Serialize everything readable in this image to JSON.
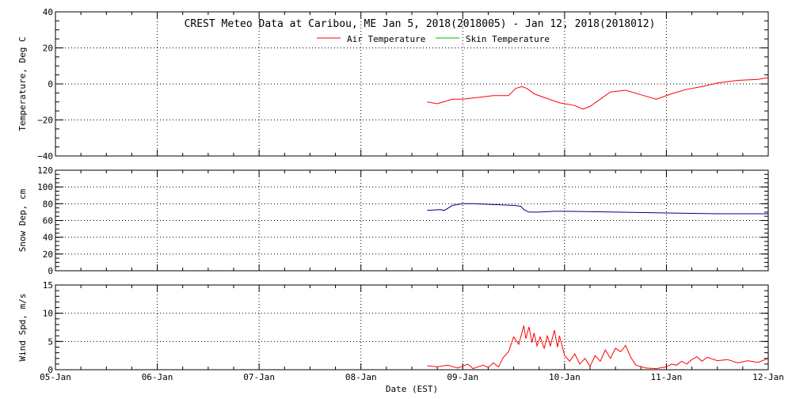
{
  "chart_data": [
    {
      "type": "line",
      "title": "CREST Meteo Data at Caribou, ME   Jan  5, 2018(2018005) - Jan 12, 2018(2018012)",
      "ylabel": "Temperature, Deg C",
      "ylim": [
        -40,
        40
      ],
      "yticks": [
        "40",
        "20",
        "0",
        "−20",
        "−40"
      ],
      "ytick_values": [
        40,
        20,
        0,
        -20,
        -40
      ],
      "grid": true,
      "legend": "top",
      "series": [
        {
          "name": "Air Temperature",
          "color": "#ff0000",
          "x": [
            3.65,
            3.75,
            3.9,
            4.0,
            4.15,
            4.3,
            4.45,
            4.52,
            4.58,
            4.63,
            4.7,
            4.8,
            4.95,
            5.1,
            5.18,
            5.25,
            5.35,
            5.45,
            5.6,
            5.75,
            5.9,
            6.05,
            6.2,
            6.35,
            6.5,
            6.7,
            6.9,
            7.0
          ],
          "y": [
            -10,
            -11,
            -8.5,
            -8.5,
            -7.5,
            -6.5,
            -6.5,
            -2.5,
            -1.5,
            -2.5,
            -5.5,
            -7.5,
            -10.5,
            -12,
            -14,
            -12.5,
            -8.5,
            -4.5,
            -3.5,
            -6,
            -8.5,
            -5.5,
            -3,
            -1.5,
            0.5,
            2,
            2.5,
            3.5
          ]
        },
        {
          "name": "Skin Temperature",
          "color": "#00bb00",
          "x": [],
          "y": []
        }
      ]
    },
    {
      "type": "line",
      "ylabel": "Snow Dep, cm",
      "ylim": [
        0,
        120
      ],
      "yticks": [
        "120",
        "100",
        "80",
        "60",
        "40",
        "20",
        "0"
      ],
      "ytick_values": [
        120,
        100,
        80,
        60,
        40,
        20,
        0
      ],
      "grid": true,
      "series": [
        {
          "color": "#000080",
          "x": [
            3.65,
            3.78,
            3.82,
            3.9,
            4.0,
            4.1,
            4.3,
            4.5,
            4.57,
            4.6,
            4.65,
            4.75,
            4.9,
            5.0,
            5.5,
            6.0,
            6.5,
            7.0
          ],
          "y": [
            72,
            73,
            72,
            78,
            80,
            80,
            79,
            78,
            77,
            73,
            70,
            70,
            71,
            71,
            70,
            69,
            68,
            68
          ]
        }
      ]
    },
    {
      "type": "line",
      "ylabel": "Wind Spd, m/s",
      "xlabel": "Date (EST)",
      "ylim": [
        0,
        15
      ],
      "yticks": [
        "15",
        "10",
        "5",
        "0"
      ],
      "ytick_values": [
        15,
        10,
        5,
        0
      ],
      "grid": true,
      "categories": [
        "05-Jan",
        "06-Jan",
        "07-Jan",
        "08-Jan",
        "09-Jan",
        "10-Jan",
        "11-Jan",
        "12-Jan"
      ],
      "series": [
        {
          "color": "#ff0000",
          "x": [
            3.65,
            3.75,
            3.85,
            3.95,
            4.05,
            4.1,
            4.2,
            4.25,
            4.3,
            4.35,
            4.4,
            4.45,
            4.5,
            4.55,
            4.6,
            4.62,
            4.65,
            4.68,
            4.7,
            4.73,
            4.76,
            4.8,
            4.83,
            4.86,
            4.9,
            4.93,
            4.95,
            5.0,
            5.05,
            5.1,
            5.15,
            5.2,
            5.25,
            5.3,
            5.35,
            5.4,
            5.45,
            5.5,
            5.55,
            5.6,
            5.65,
            5.7,
            5.8,
            5.9,
            6.0,
            6.05,
            6.1,
            6.15,
            6.2,
            6.25,
            6.3,
            6.35,
            6.4,
            6.5,
            6.6,
            6.7,
            6.8,
            6.9,
            7.0
          ],
          "y": [
            0.7,
            0.5,
            0.8,
            0.3,
            1.0,
            0.2,
            0.8,
            0.4,
            1.2,
            0.5,
            2.2,
            3.2,
            5.8,
            4.5,
            7.8,
            5.5,
            7.6,
            4.8,
            6.5,
            4.2,
            5.8,
            3.8,
            6.0,
            4.2,
            7.0,
            4.0,
            6.0,
            2.5,
            1.5,
            2.8,
            1.0,
            2.0,
            0.6,
            2.5,
            1.5,
            3.5,
            2.0,
            3.8,
            3.2,
            4.3,
            2.2,
            0.8,
            0.3,
            0.2,
            0.5,
            1.0,
            0.8,
            1.5,
            1.0,
            1.8,
            2.3,
            1.5,
            2.2,
            1.6,
            1.8,
            1.2,
            1.6,
            1.3,
            2.0
          ]
        }
      ]
    }
  ]
}
